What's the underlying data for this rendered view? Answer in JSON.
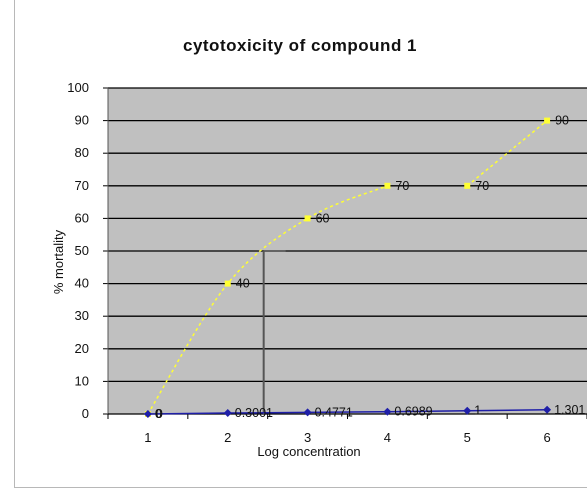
{
  "chart_data": {
    "type": "line",
    "title": "cytotoxicity of compound 1",
    "xlabel": "Log concentration",
    "ylabel": "% mortality",
    "categories": [
      "1",
      "2",
      "3",
      "4",
      "5",
      "6"
    ],
    "ylim": [
      0,
      100
    ],
    "yticks": [
      "0",
      "10",
      "20",
      "30",
      "40",
      "50",
      "60",
      "70",
      "80",
      "90",
      "100"
    ],
    "grid": true,
    "legend": "none",
    "plot_background": "#c0c0c0",
    "series": [
      {
        "color": "#ffff33",
        "style": "dashed-curve",
        "segments": [
          {
            "x": [
              1,
              2,
              3,
              4
            ],
            "y": [
              0,
              40,
              60,
              70
            ],
            "labels": [
              "0",
              "40",
              "60",
              "70"
            ]
          },
          {
            "x": [
              5,
              6
            ],
            "y": [
              70,
              90
            ],
            "labels": [
              "70",
              "90"
            ]
          }
        ]
      },
      {
        "color": "#1f1fa8",
        "style": "solid",
        "x": [
          1,
          2,
          3,
          4,
          5,
          6
        ],
        "y": [
          0,
          0.3,
          0.48,
          0.6989,
          1,
          1.301
        ],
        "labels": [
          "0",
          "0.3001",
          "0.4771",
          "0.6989",
          "1",
          "1.301"
        ]
      }
    ],
    "annotation_line": {
      "x": 2.45,
      "y": 50
    }
  }
}
